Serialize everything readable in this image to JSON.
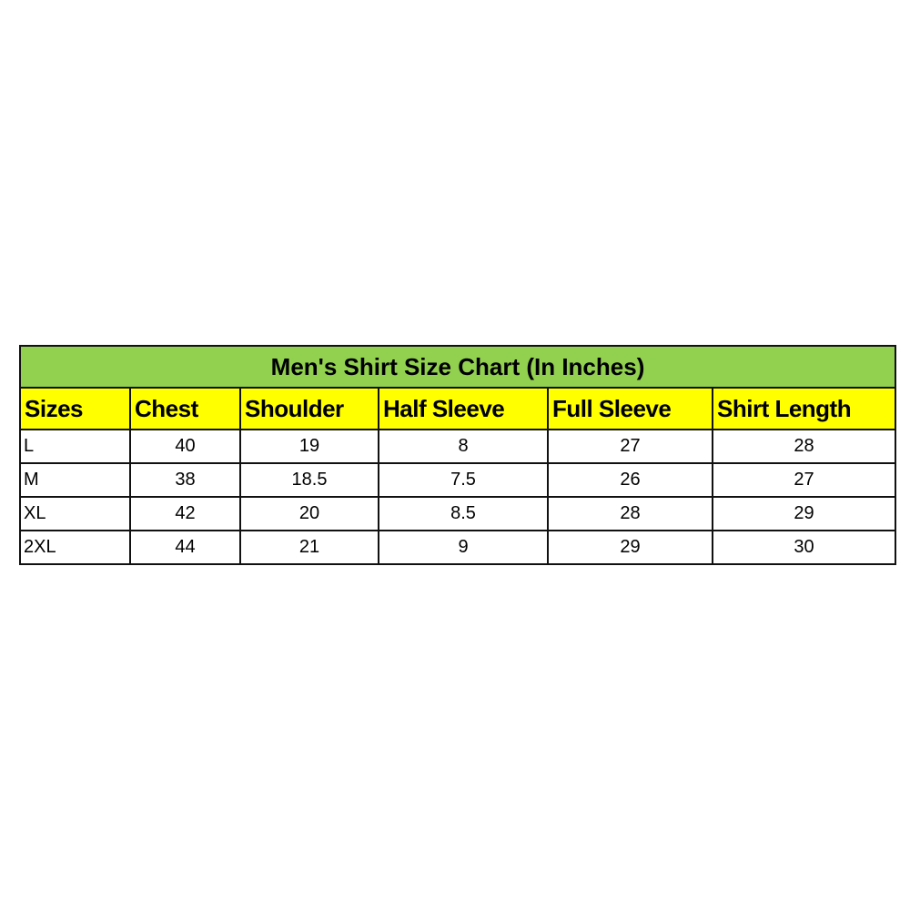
{
  "title": "Men's Shirt Size Chart (In Inches)",
  "colors": {
    "title_bg": "#92d050",
    "header_bg": "#ffff00"
  },
  "headers": [
    "Sizes",
    "Chest",
    "Shoulder",
    "Half Sleeve",
    "Full Sleeve",
    "Shirt Length"
  ],
  "rows": [
    [
      "L",
      "40",
      "19",
      "8",
      "27",
      "28"
    ],
    [
      "M",
      "38",
      "18.5",
      "7.5",
      "26",
      "27"
    ],
    [
      "XL",
      "42",
      "20",
      "8.5",
      "28",
      "29"
    ],
    [
      "2XL",
      "44",
      "21",
      "9",
      "29",
      "30"
    ]
  ]
}
